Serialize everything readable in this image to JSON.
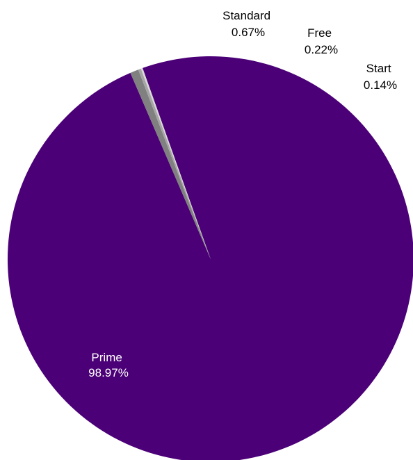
{
  "chart_data": {
    "type": "pie",
    "start_angle_deg": -19.6,
    "direction": "clockwise",
    "slices": [
      {
        "label": "Prime",
        "value": 98.97,
        "display": "98.97%",
        "color": "#4b0077",
        "label_color": "#ffffff"
      },
      {
        "label": "Standard",
        "value": 0.67,
        "display": "0.67%",
        "color": "#808080",
        "label_color": "#000000"
      },
      {
        "label": "Free",
        "value": 0.22,
        "display": "0.22%",
        "color": "#a6a6a6",
        "label_color": "#000000"
      },
      {
        "label": "Start",
        "value": 0.14,
        "display": "0.14%",
        "color": "#d9d9d9",
        "label_color": "#000000"
      }
    ]
  }
}
